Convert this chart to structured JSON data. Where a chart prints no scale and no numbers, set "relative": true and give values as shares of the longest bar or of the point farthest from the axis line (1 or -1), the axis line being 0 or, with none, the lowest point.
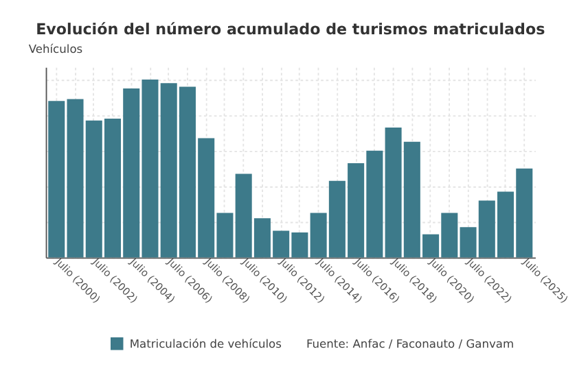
{
  "chart_data": {
    "type": "bar",
    "title": "Evolución del número acumulado de turismos matriculados",
    "ylabel": "Vehículos",
    "categories": [
      "Julio (2000)",
      null,
      "Julio (2002)",
      null,
      "Julio (2004)",
      null,
      "Julio (2006)",
      null,
      "Julio (2008)",
      null,
      "Julio (2010)",
      null,
      "Julio (2012)",
      null,
      "Julio (2014)",
      null,
      "Julio (2016)",
      null,
      "Julio (2018)",
      null,
      "Julio (2020)",
      null,
      "Julio (2022)",
      null,
      null,
      "Julio (2025)"
    ],
    "relative": true,
    "series": [
      {
        "name": "Matriculación de vehículos",
        "color": "#3d7a8a",
        "values": [
          0.88,
          0.89,
          0.77,
          0.78,
          0.95,
          1,
          0.98,
          0.96,
          0.67,
          0.25,
          0.47,
          0.22,
          0.15,
          0.14,
          0.25,
          0.43,
          0.53,
          0.6,
          0.73,
          0.65,
          0.13,
          0.25,
          0.17,
          0.32,
          0.37,
          0.5
        ]
      }
    ],
    "annotations": [
      "Fuente: Anfac / Faconauto / Ganvam"
    ],
    "grid": true,
    "legend": "bottom"
  }
}
